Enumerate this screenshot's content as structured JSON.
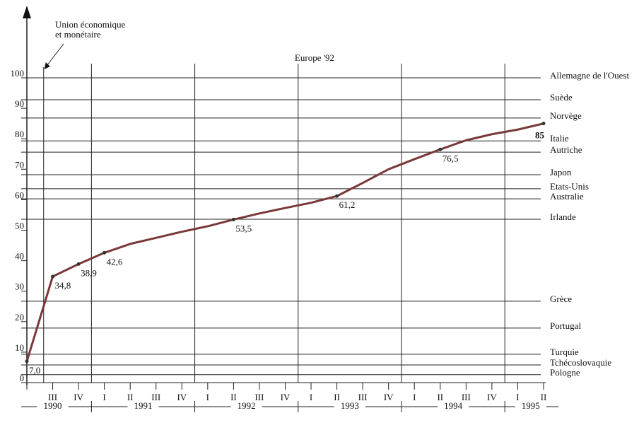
{
  "chart_data": {
    "type": "line",
    "title": "Europe '92",
    "annotation": "Union économique\net monétaire",
    "categories": [
      null,
      "III",
      "IV",
      "I",
      "II",
      "III",
      "IV",
      "I",
      "II",
      "III",
      "IV",
      "I",
      "II",
      "III",
      "IV",
      "I",
      "II",
      "III",
      "IV",
      "I",
      "II"
    ],
    "years": [
      {
        "label": "1990",
        "from": 0,
        "to": 2
      },
      {
        "label": "1991",
        "from": 3,
        "to": 6
      },
      {
        "label": "1992",
        "from": 7,
        "to": 10
      },
      {
        "label": "1993",
        "from": 11,
        "to": 14
      },
      {
        "label": "1994",
        "from": 15,
        "to": 18
      },
      {
        "label": "1995",
        "from": 19,
        "to": 20
      }
    ],
    "series": [
      {
        "color": "#7a3838",
        "values": [
          7.0,
          34.8,
          38.9,
          42.6,
          45.5,
          47.5,
          49.5,
          51.3,
          53.5,
          55.5,
          57.3,
          59,
          61.2,
          65.5,
          70,
          73.3,
          76.5,
          79.5,
          81.5,
          83,
          85
        ],
        "value_labels": [
          "7,0",
          "34,8",
          "38,9",
          "42,6",
          null,
          null,
          null,
          null,
          "53,5",
          null,
          null,
          null,
          "61,2",
          null,
          null,
          null,
          "76,5",
          null,
          null,
          null,
          "85"
        ]
      }
    ],
    "reference_lines": [
      {
        "label": "Allemagne de l'Ouest",
        "value": 100
      },
      {
        "label": "Suède",
        "value": 92.8
      },
      {
        "label": "Norvège",
        "value": 86.8
      },
      {
        "label": "Italie",
        "value": 79.3
      },
      {
        "label": "Autriche",
        "value": 75.6
      },
      {
        "label": "Japon",
        "value": 68.2
      },
      {
        "label": "Etats-Unis",
        "value": 63.6
      },
      {
        "label": "Australie",
        "value": 60.3
      },
      {
        "label": "Irlande",
        "value": 53.6
      },
      {
        "label": "Grèce",
        "value": 26.7
      },
      {
        "label": "Portugal",
        "value": 17.9
      },
      {
        "label": "Turquie",
        "value": 9.3
      },
      {
        "label": "Tchécoslovaquie",
        "value": 5.8
      },
      {
        "label": "Pologne",
        "value": 2.6
      }
    ],
    "ylim": [
      0,
      100
    ],
    "yticks": [
      0,
      10,
      20,
      30,
      40,
      50,
      60,
      70,
      80,
      90,
      100
    ]
  }
}
